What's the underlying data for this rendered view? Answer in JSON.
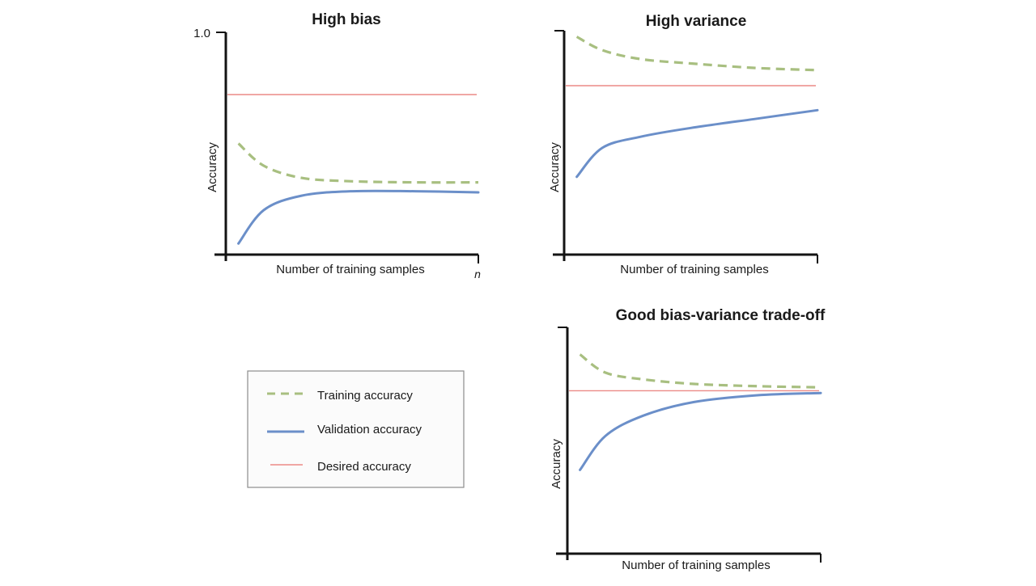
{
  "colors": {
    "axis": "#141414",
    "training": "#a8bf80",
    "validation": "#6b8fc9",
    "desired": "#ec8a86",
    "text": "#1a1a1a",
    "legend_border": "#8c8c8c",
    "legend_bg": "#fbfbfb",
    "background": "#ffffff"
  },
  "legend": {
    "training_label": "Training accuracy",
    "validation_label": "Validation accuracy",
    "desired_label": "Desired accuracy"
  },
  "chart_data": [
    {
      "type": "line",
      "title": "High bias",
      "xlabel": "Number of training samples",
      "ylabel": "Accuracy",
      "x_end_label": "n",
      "y_tick_labels": [
        "1.0"
      ],
      "ylim": [
        0,
        1
      ],
      "x": [
        0.05,
        0.15,
        0.3,
        0.5,
        0.75,
        1.0
      ],
      "series": [
        {
          "name": "Training accuracy",
          "style": "dashed",
          "values": [
            0.5,
            0.4,
            0.345,
            0.33,
            0.325,
            0.325
          ]
        },
        {
          "name": "Validation accuracy",
          "style": "solid",
          "values": [
            0.05,
            0.2,
            0.265,
            0.285,
            0.285,
            0.28
          ]
        },
        {
          "name": "Desired accuracy",
          "style": "thin",
          "values": [
            0.72,
            0.72,
            0.72,
            0.72,
            0.72,
            0.72
          ]
        }
      ]
    },
    {
      "type": "line",
      "title": "High variance",
      "xlabel": "Number of training samples",
      "ylabel": "Accuracy",
      "ylim": [
        0,
        1
      ],
      "x": [
        0.05,
        0.15,
        0.3,
        0.5,
        0.75,
        1.0
      ],
      "series": [
        {
          "name": "Training accuracy",
          "style": "dashed",
          "values": [
            0.98,
            0.92,
            0.88,
            0.86,
            0.84,
            0.83
          ]
        },
        {
          "name": "Validation accuracy",
          "style": "solid",
          "values": [
            0.35,
            0.48,
            0.53,
            0.57,
            0.61,
            0.65
          ]
        },
        {
          "name": "Desired accuracy",
          "style": "thin",
          "values": [
            0.76,
            0.76,
            0.76,
            0.76,
            0.76,
            0.76
          ]
        }
      ]
    },
    {
      "type": "line",
      "title": "Good bias-variance trade-off",
      "xlabel": "Number of training samples",
      "ylabel": "Accuracy",
      "ylim": [
        0,
        1
      ],
      "x": [
        0.05,
        0.15,
        0.3,
        0.5,
        0.75,
        1.0
      ],
      "series": [
        {
          "name": "Training accuracy",
          "style": "dashed",
          "values": [
            0.88,
            0.8,
            0.77,
            0.75,
            0.74,
            0.735
          ]
        },
        {
          "name": "Validation accuracy",
          "style": "solid",
          "values": [
            0.37,
            0.52,
            0.61,
            0.67,
            0.7,
            0.71
          ]
        },
        {
          "name": "Desired accuracy",
          "style": "thin",
          "values": [
            0.72,
            0.72,
            0.72,
            0.72,
            0.72,
            0.72
          ]
        }
      ]
    }
  ]
}
